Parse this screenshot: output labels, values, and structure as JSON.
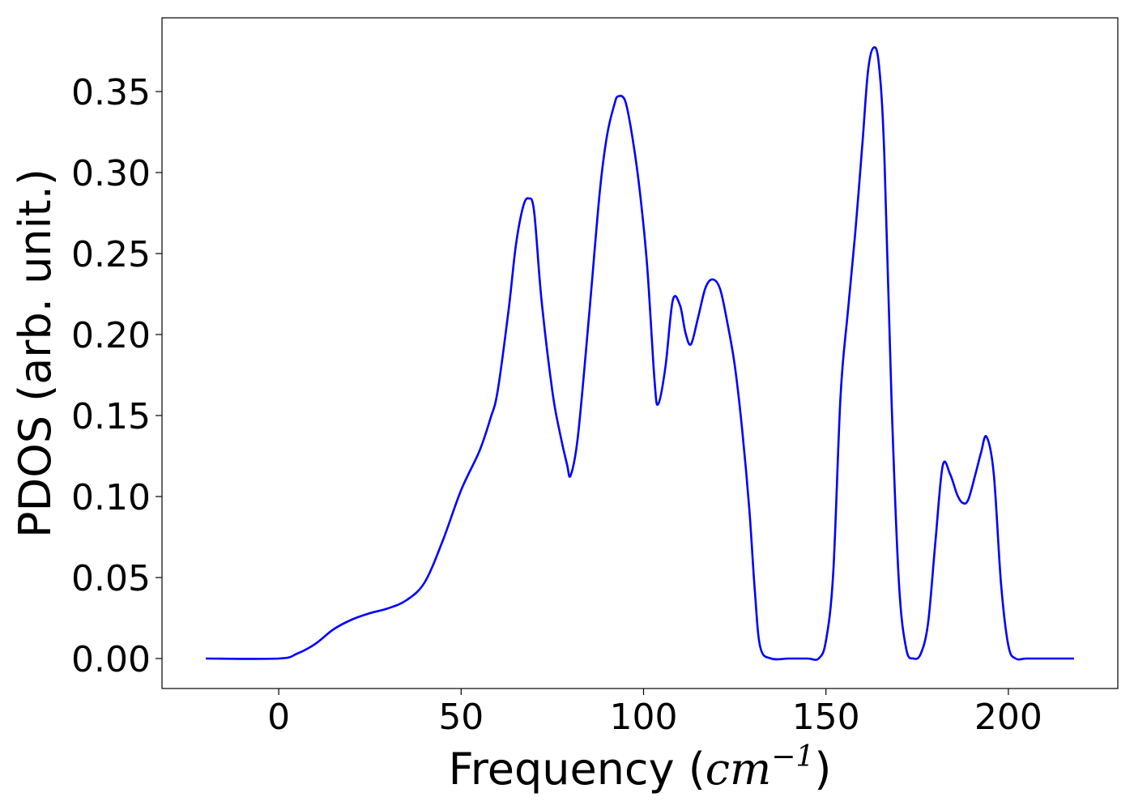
{
  "chart_data": {
    "type": "line",
    "title": "",
    "xlabel": "Frequency (cm⁻¹)",
    "xlabel_parts": {
      "prefix": "Frequency (",
      "unit": "cm",
      "exponent": "−1",
      "suffix": ")"
    },
    "ylabel": "PDOS (arb. unit.)",
    "xlim": [
      -32,
      230
    ],
    "ylim": [
      -0.0185,
      0.3955
    ],
    "xticks": [
      0,
      50,
      100,
      150,
      200
    ],
    "xtick_labels": [
      "0",
      "50",
      "100",
      "150",
      "200"
    ],
    "yticks": [
      0.0,
      0.05,
      0.1,
      0.15,
      0.2,
      0.25,
      0.3,
      0.35
    ],
    "ytick_labels": [
      "0.00",
      "0.05",
      "0.10",
      "0.15",
      "0.20",
      "0.25",
      "0.30",
      "0.35"
    ],
    "grid": false,
    "series": [
      {
        "color": "#0000ff",
        "x": [
          -20,
          0,
          5,
          10,
          15,
          20,
          25,
          30,
          35,
          40,
          45,
          50,
          55,
          58,
          60,
          63,
          65,
          67,
          68.5,
          70,
          72,
          75,
          77,
          79,
          80,
          82,
          85,
          88,
          90,
          92,
          93,
          95,
          97,
          99,
          101,
          103,
          104,
          106,
          108,
          110,
          111.5,
          113,
          115,
          117,
          119,
          121,
          123,
          125,
          127,
          129,
          130.5,
          132,
          135,
          140,
          145,
          148,
          150,
          152,
          154,
          156,
          158,
          160,
          161.5,
          163,
          164.5,
          166,
          168,
          170,
          172,
          174,
          176,
          178,
          180,
          182,
          184,
          186,
          187.5,
          189,
          191,
          192.5,
          194,
          196,
          198,
          200,
          202,
          205,
          210,
          218
        ],
        "y": [
          0,
          0,
          0.003,
          0.009,
          0.018,
          0.024,
          0.028,
          0.031,
          0.036,
          0.047,
          0.073,
          0.104,
          0.128,
          0.148,
          0.165,
          0.215,
          0.255,
          0.279,
          0.284,
          0.276,
          0.222,
          0.165,
          0.14,
          0.12,
          0.113,
          0.137,
          0.21,
          0.288,
          0.323,
          0.342,
          0.347,
          0.344,
          0.321,
          0.288,
          0.242,
          0.172,
          0.157,
          0.18,
          0.221,
          0.218,
          0.201,
          0.194,
          0.211,
          0.229,
          0.234,
          0.228,
          0.207,
          0.181,
          0.142,
          0.092,
          0.042,
          0.007,
          0.0,
          0.0,
          0.0,
          0.0,
          0.011,
          0.053,
          0.162,
          0.214,
          0.262,
          0.318,
          0.362,
          0.377,
          0.367,
          0.311,
          0.158,
          0.047,
          0.006,
          0.0,
          0.003,
          0.022,
          0.072,
          0.119,
          0.114,
          0.101,
          0.096,
          0.098,
          0.114,
          0.127,
          0.137,
          0.114,
          0.046,
          0.008,
          0.0,
          0.0,
          0.0,
          0.0
        ]
      }
    ]
  }
}
